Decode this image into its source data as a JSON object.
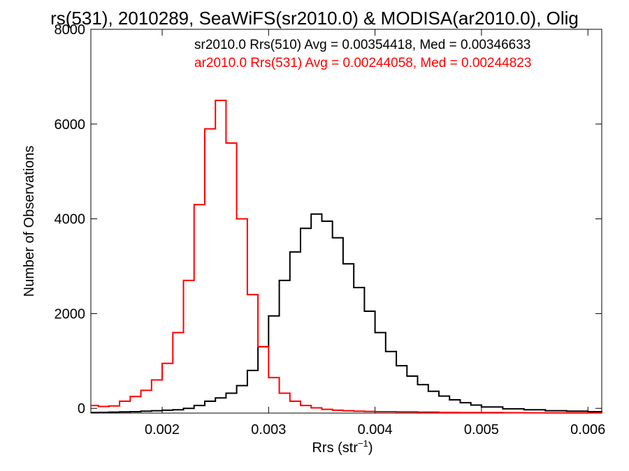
{
  "chart_data": {
    "type": "line",
    "title": "rs(531), 2010289, SeaWiFS(sr2010.0) & MODISA(ar2010.0), Olig",
    "xlabel": "Rrs (str",
    "xlabel_exp": "−1",
    "xlabel_close": ")",
    "ylabel": "Number of Observations",
    "xlim": [
      0.00133,
      0.00613
    ],
    "ylim": [
      -100,
      8000
    ],
    "xticks": [
      0.002,
      0.003,
      0.004,
      0.005,
      0.006
    ],
    "xtick_labels": [
      "0.002",
      "0.003",
      "0.004",
      "0.005",
      "0.006"
    ],
    "yticks": [
      0,
      2000,
      4000,
      6000,
      8000
    ],
    "ytick_labels": [
      "0",
      "2000",
      "4000",
      "6000",
      "8000"
    ],
    "legend_position": "top-right",
    "grid": false,
    "series": [
      {
        "name": "sr2010.0 Rrs(510) Avg = 0.00354418, Med = 0.00346633",
        "color": "#000000",
        "x": [
          0.00133,
          0.0014,
          0.0015,
          0.0016,
          0.0017,
          0.0018,
          0.0019,
          0.002,
          0.0021,
          0.0022,
          0.0023,
          0.0024,
          0.0025,
          0.0026,
          0.0027,
          0.0028,
          0.0029,
          0.003,
          0.0031,
          0.0032,
          0.0033,
          0.0034,
          0.0035,
          0.0036,
          0.0037,
          0.0038,
          0.0039,
          0.004,
          0.0041,
          0.0042,
          0.0043,
          0.0044,
          0.0045,
          0.0046,
          0.0047,
          0.0048,
          0.0049,
          0.005,
          0.0052,
          0.0054,
          0.0056,
          0.0058,
          0.006,
          0.00613
        ],
        "y": [
          -90,
          -85,
          -80,
          -75,
          -70,
          -60,
          -50,
          -40,
          -30,
          0,
          60,
          150,
          220,
          320,
          480,
          800,
          1300,
          1950,
          2700,
          3300,
          3800,
          4100,
          3950,
          3600,
          3050,
          2550,
          2050,
          1600,
          1200,
          900,
          680,
          500,
          360,
          260,
          180,
          120,
          70,
          30,
          -10,
          -30,
          -50,
          -60,
          -70,
          -75
        ]
      },
      {
        "name": "ar2010.0 Rrs(531) Avg = 0.00244058, Med = 0.00244823",
        "color": "#ff0000",
        "x": [
          0.00133,
          0.0014,
          0.0015,
          0.0016,
          0.0017,
          0.0018,
          0.0019,
          0.002,
          0.0021,
          0.0022,
          0.0023,
          0.0024,
          0.0025,
          0.0026,
          0.0027,
          0.0028,
          0.0029,
          0.003,
          0.0031,
          0.0032,
          0.0033,
          0.0034,
          0.0035,
          0.0036,
          0.0037,
          0.0038,
          0.0039,
          0.004,
          0.0042,
          0.0044,
          0.0046,
          0.0048,
          0.005,
          0.0052,
          0.0054,
          0.0056,
          0.0058,
          0.006,
          0.00613
        ],
        "y": [
          60,
          40,
          50,
          150,
          250,
          380,
          600,
          950,
          1600,
          2700,
          4300,
          5900,
          6500,
          5600,
          4000,
          2400,
          1300,
          650,
          320,
          150,
          60,
          10,
          -20,
          -40,
          -50,
          -60,
          -65,
          -70,
          -75,
          -80,
          -85,
          -88,
          -90,
          -92,
          -94,
          -95,
          -96,
          -97,
          -98
        ]
      }
    ]
  }
}
